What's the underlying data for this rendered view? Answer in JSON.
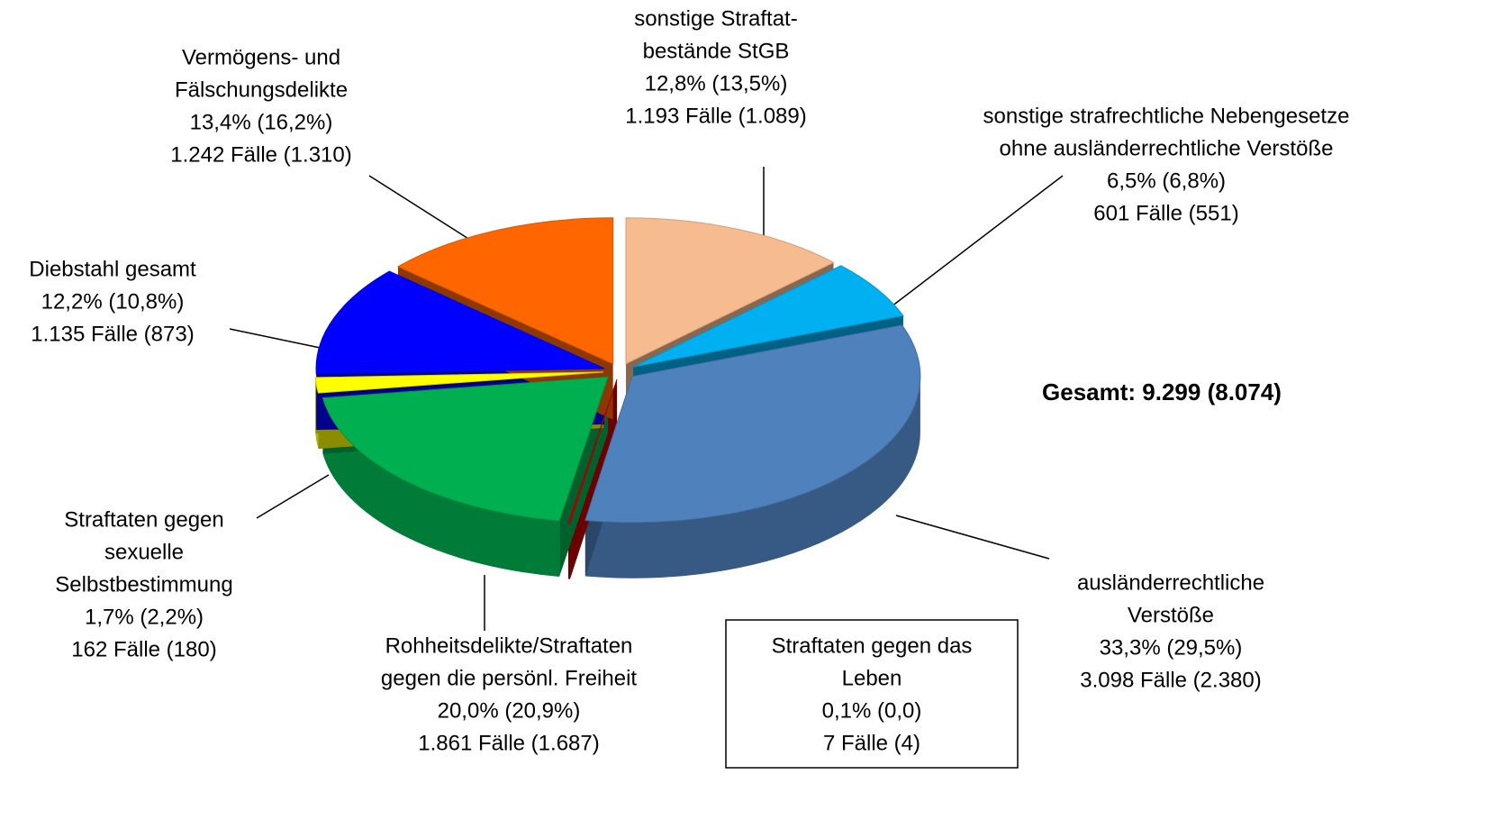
{
  "chart_data": {
    "type": "pie",
    "categories": [
      [
        "sonstige Straftat-",
        "bestände StGB"
      ],
      [
        "sonstige strafrechtliche Nebengesetze",
        "ohne ausländerrechtliche Verstöße"
      ],
      [
        "ausländerrechtliche",
        "Verstöße"
      ],
      [
        "Straftaten gegen das",
        "Leben"
      ],
      [
        "Rohheitsdelikte/Straftaten",
        "gegen die persönl. Freiheit"
      ],
      [
        "Straftaten gegen",
        "sexuelle",
        "Selbstbestimmung"
      ],
      [
        "Diebstahl gesamt"
      ],
      [
        "Vermögens- und",
        "Fälschungsdelikte"
      ]
    ],
    "values": [
      12.8,
      6.5,
      33.3,
      0.1,
      20.0,
      1.7,
      12.2,
      13.4
    ],
    "value_labels": [
      "12,8% (13,5%)",
      "6,5% (6,8%)",
      "33,3% (29,5%)",
      "0,1% (0,0)",
      "20,0% (20,9%)",
      "1,7% (2,2%)",
      "12,2% (10,8%)",
      "13,4% (16,2%)"
    ],
    "cases": [
      "1.193 Fälle (1.089)",
      "601 Fälle (551)",
      "3.098 Fälle (2.380)",
      "7 Fälle (4)",
      "1.861 Fälle (1.687)",
      "162 Fälle (180)",
      "1.135 Fälle (873)",
      "1.242 Fälle (1.310)"
    ],
    "colors": [
      "#f6bb8f",
      "#00b0f0",
      "#4f81bd",
      "#c00000",
      "#00b050",
      "#ffff00",
      "#0000ff",
      "#ff6600"
    ],
    "annotation": "Gesamt: 9.299 (8.074)"
  }
}
